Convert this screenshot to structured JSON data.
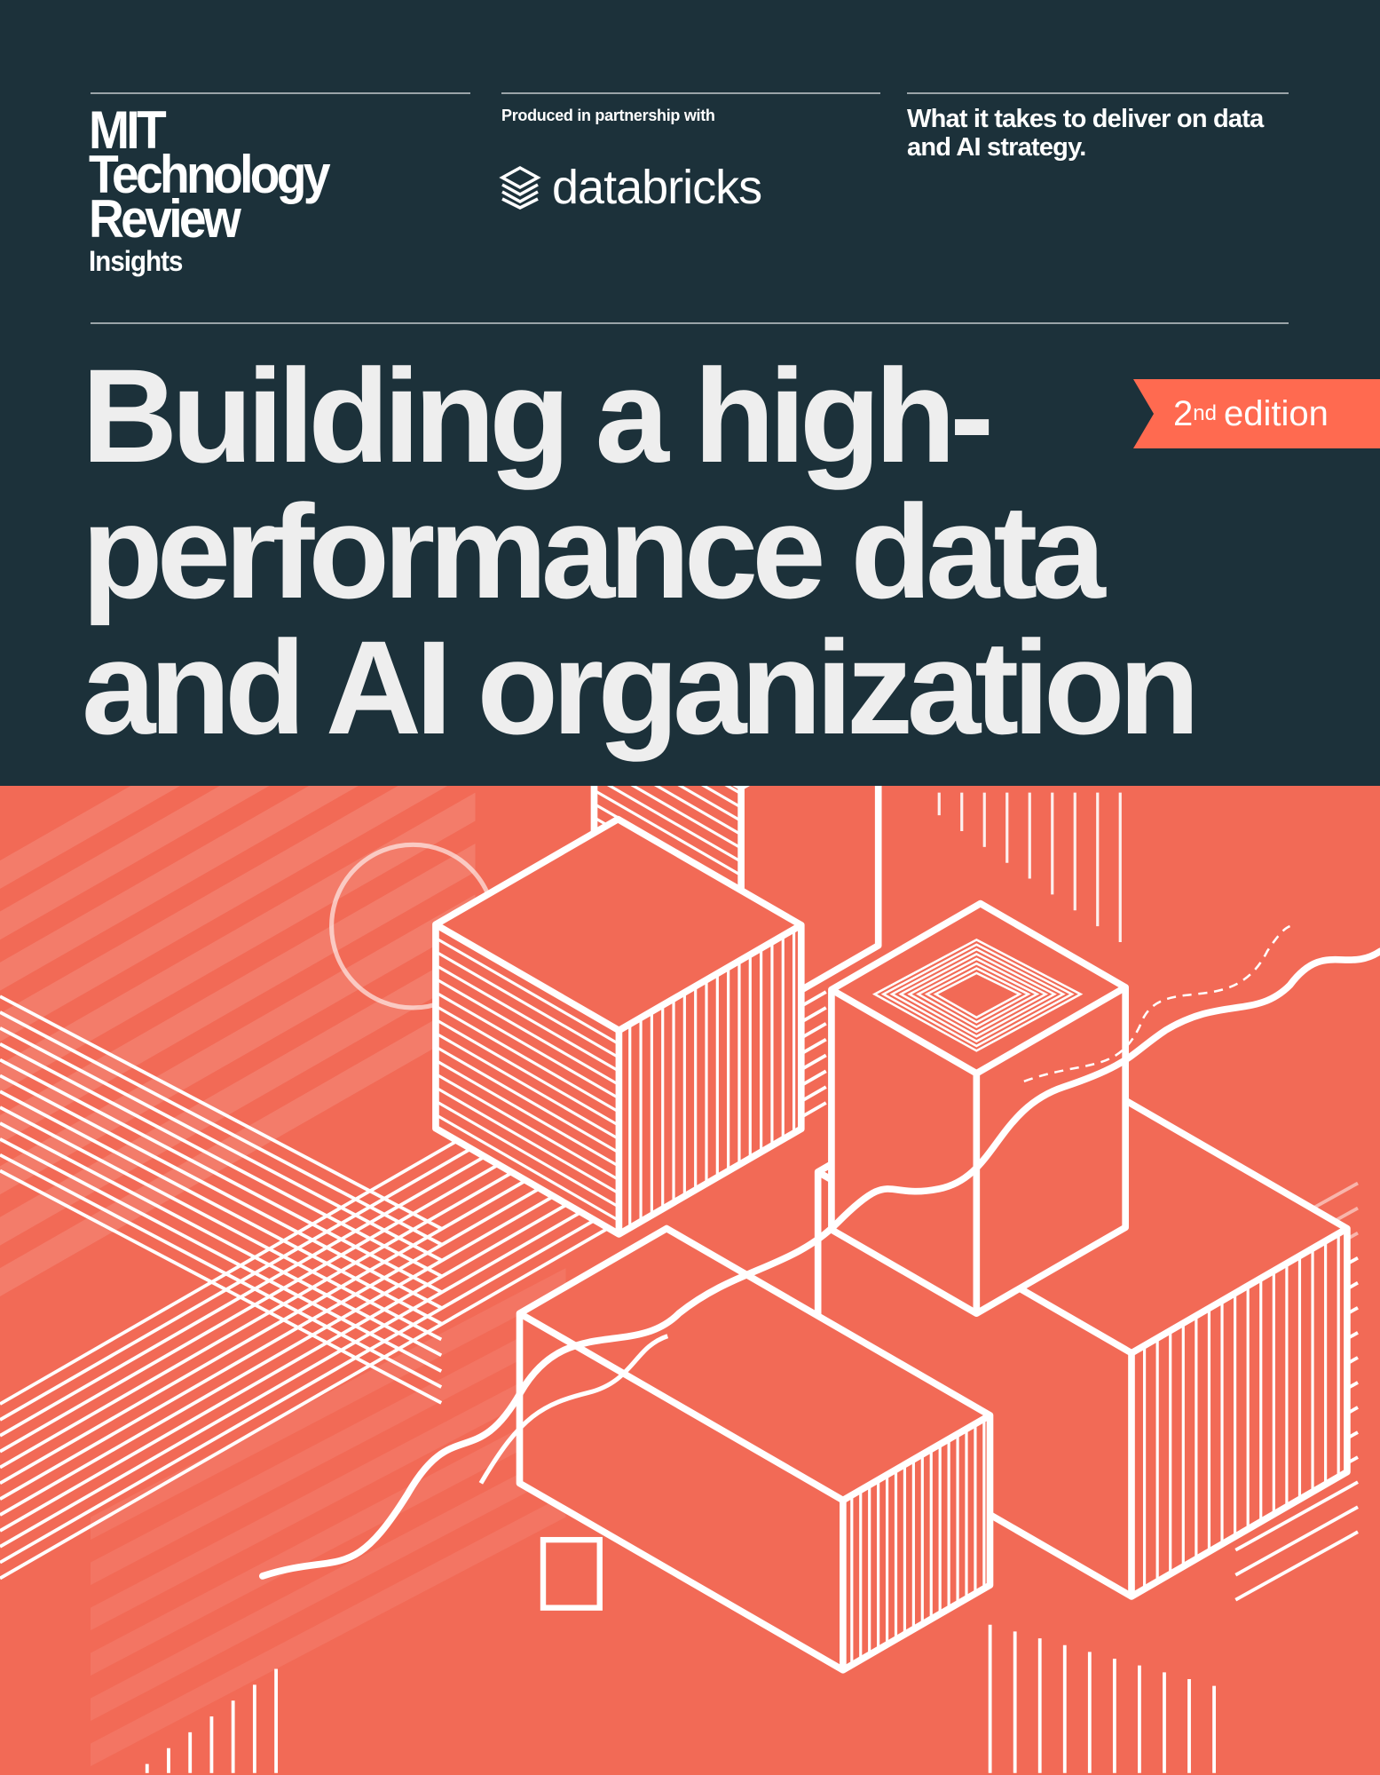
{
  "brand": {
    "line1": "MIT",
    "line2": "Technology",
    "line3": "Review",
    "line4": "Insights"
  },
  "partner": {
    "label": "Produced in partnership with",
    "logo_icon": "databricks-layers-icon",
    "name": "databricks"
  },
  "tagline": "What it takes to deliver on data and AI strategy.",
  "title": {
    "line1": "Building a high-",
    "line2": "performance data",
    "line3": "and AI organization"
  },
  "edition": {
    "number": "2",
    "suffix": "nd",
    "label": "edition"
  },
  "colors": {
    "header": "#1c313a",
    "coral": "#f26a56",
    "badge": "#ff6a50",
    "text": "#eeeeee"
  }
}
